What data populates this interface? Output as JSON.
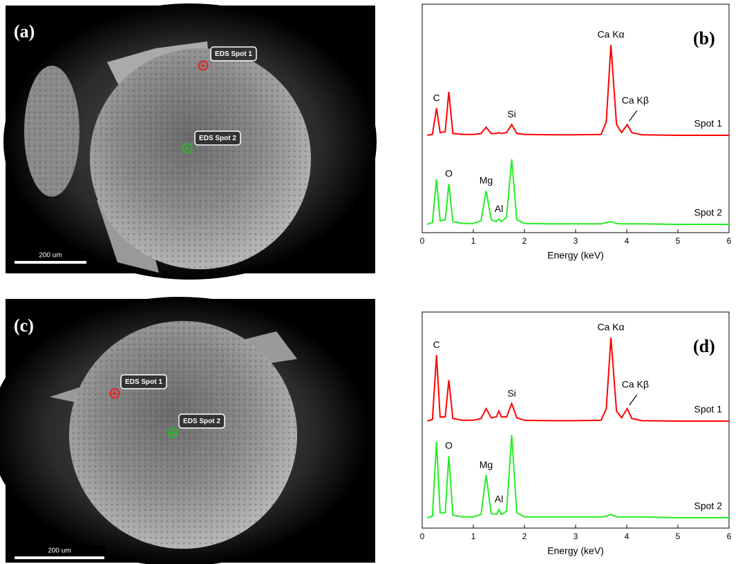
{
  "figures": [
    {
      "panel_label": "(a)",
      "scale_bar": "200 um",
      "markers": [
        {
          "label": "EDS Spot 1",
          "color": "#e02020"
        },
        {
          "label": "EDS Spot 2",
          "color": "#22c022"
        }
      ]
    },
    {
      "panel_label": "(c)",
      "scale_bar": "200 um",
      "markers": [
        {
          "label": "EDS Spot 1",
          "color": "#e02020"
        },
        {
          "label": "EDS Spot 2",
          "color": "#22c022"
        }
      ]
    }
  ],
  "chart_data": [
    {
      "type": "line",
      "panel_label": "(b)",
      "xlabel": "Energy (keV)",
      "xlim": [
        0,
        6
      ],
      "xticks": [
        0,
        1,
        2,
        3,
        4,
        5,
        6
      ],
      "x": [
        0.1,
        0.2,
        0.28,
        0.35,
        0.45,
        0.52,
        0.6,
        0.8,
        1.0,
        1.15,
        1.25,
        1.35,
        1.45,
        1.5,
        1.55,
        1.65,
        1.75,
        1.85,
        2.0,
        2.5,
        3.0,
        3.5,
        3.6,
        3.69,
        3.8,
        3.9,
        4.01,
        4.1,
        4.3,
        5,
        6
      ],
      "series": [
        {
          "name": "Spot 1",
          "color": "#ff0000",
          "values": [
            0,
            1,
            30,
            3,
            4,
            48,
            2,
            1,
            1,
            2,
            9,
            2,
            2,
            3,
            2,
            3,
            12,
            2,
            1,
            0.5,
            0.5,
            1,
            15,
            100,
            12,
            3,
            12,
            3,
            0.5,
            0,
            0
          ],
          "annotations": [
            {
              "text": "C",
              "x": 0.28
            },
            {
              "text": "Si",
              "x": 1.75
            },
            {
              "text": "Ca Kα",
              "x": 3.69
            },
            {
              "text": "Ca Kβ",
              "x": 4.01,
              "arrow": true
            }
          ]
        },
        {
          "name": "Spot 2",
          "color": "#22ee22",
          "values": [
            0,
            2,
            50,
            4,
            5,
            45,
            3,
            1,
            1,
            4,
            37,
            5,
            3,
            6,
            3,
            8,
            72,
            5,
            1,
            0.5,
            0.5,
            0.5,
            2,
            3,
            1,
            0.5,
            0.5,
            0.5,
            0.5,
            0,
            0
          ],
          "annotations": [
            {
              "text": "O",
              "x": 0.52
            },
            {
              "text": "Mg",
              "x": 1.25
            },
            {
              "text": "Al",
              "x": 1.5
            }
          ]
        }
      ]
    },
    {
      "type": "line",
      "panel_label": "(d)",
      "xlabel": "Energy (keV)",
      "xlim": [
        0,
        6
      ],
      "xticks": [
        0,
        1,
        2,
        3,
        4,
        5,
        6
      ],
      "x": [
        0.1,
        0.2,
        0.28,
        0.35,
        0.45,
        0.52,
        0.6,
        0.8,
        1.0,
        1.15,
        1.25,
        1.35,
        1.45,
        1.5,
        1.55,
        1.65,
        1.75,
        1.85,
        2.0,
        2.5,
        3.0,
        3.5,
        3.6,
        3.69,
        3.8,
        3.9,
        4.01,
        4.1,
        4.3,
        5,
        6
      ],
      "series": [
        {
          "name": "Spot 1",
          "color": "#ff0000",
          "values": [
            0,
            2,
            79,
            5,
            5,
            49,
            3,
            1,
            1,
            3,
            15,
            4,
            5,
            12,
            5,
            5,
            21,
            4,
            1,
            0.5,
            0.5,
            1,
            15,
            100,
            12,
            4,
            15,
            3,
            0.5,
            0,
            0
          ],
          "annotations": [
            {
              "text": "C",
              "x": 0.28
            },
            {
              "text": "Si",
              "x": 1.75
            },
            {
              "text": "Ca Kα",
              "x": 3.69
            },
            {
              "text": "Ca Kβ",
              "x": 4.01,
              "arrow": true
            }
          ]
        },
        {
          "name": "Spot 2",
          "color": "#22ee22",
          "values": [
            0,
            2,
            91,
            6,
            6,
            74,
            3,
            1,
            1,
            4,
            51,
            5,
            4,
            10,
            4,
            8,
            99,
            6,
            1,
            1,
            1,
            1,
            2,
            4,
            1,
            1,
            1,
            1,
            1,
            0,
            0
          ],
          "annotations": [
            {
              "text": "O",
              "x": 0.52
            },
            {
              "text": "Mg",
              "x": 1.25
            },
            {
              "text": "Al",
              "x": 1.5
            }
          ]
        }
      ]
    }
  ]
}
